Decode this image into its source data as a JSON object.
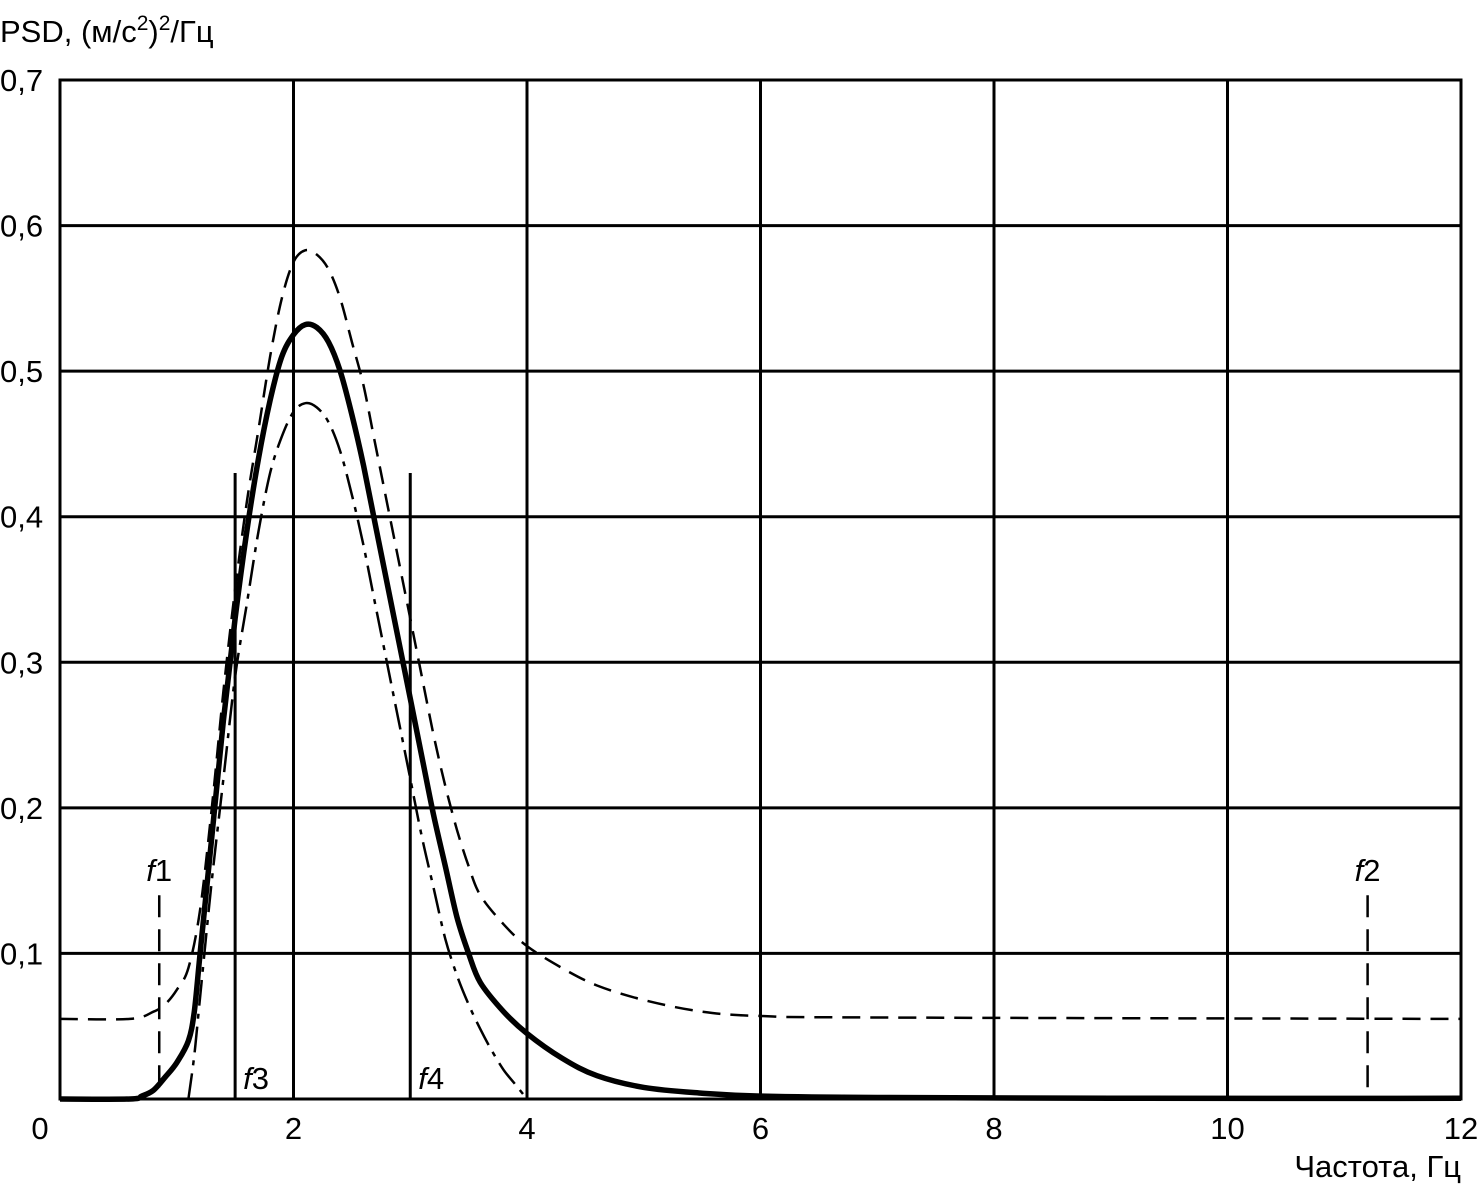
{
  "chart_data": {
    "type": "line",
    "ylabel_parts": [
      "PSD, (м/с",
      "2",
      ")",
      "2",
      "/Гц"
    ],
    "xlabel": "Частота, Гц",
    "xlim": [
      0,
      12
    ],
    "ylim": [
      0,
      0.7
    ],
    "grid": true,
    "x_ticks": [
      0,
      2,
      4,
      6,
      8,
      10,
      12
    ],
    "x_tick_labels": [
      "0",
      "2",
      "4",
      "6",
      "8",
      "10",
      "12"
    ],
    "y_ticks": [
      0.1,
      0.2,
      0.3,
      0.4,
      0.5,
      0.6,
      0.7
    ],
    "y_tick_labels": [
      "0,1",
      "0,2",
      "0,3",
      "0,4",
      "0,5",
      "0,6",
      "0,7"
    ],
    "series": [
      {
        "style": "solid",
        "values": [
          [
            0,
            0
          ],
          [
            0.6,
            0
          ],
          [
            0.7,
            0.002
          ],
          [
            0.8,
            0.006
          ],
          [
            0.9,
            0.015
          ],
          [
            1.0,
            0.025
          ],
          [
            1.1,
            0.04
          ],
          [
            1.15,
            0.06
          ],
          [
            1.2,
            0.1
          ],
          [
            1.3,
            0.18
          ],
          [
            1.4,
            0.26
          ],
          [
            1.5,
            0.33
          ],
          [
            1.6,
            0.39
          ],
          [
            1.7,
            0.44
          ],
          [
            1.8,
            0.48
          ],
          [
            1.9,
            0.51
          ],
          [
            2.0,
            0.525
          ],
          [
            2.1,
            0.532
          ],
          [
            2.2,
            0.53
          ],
          [
            2.3,
            0.52
          ],
          [
            2.4,
            0.5
          ],
          [
            2.5,
            0.47
          ],
          [
            2.6,
            0.435
          ],
          [
            2.7,
            0.395
          ],
          [
            2.8,
            0.355
          ],
          [
            2.9,
            0.315
          ],
          [
            3.0,
            0.275
          ],
          [
            3.1,
            0.235
          ],
          [
            3.2,
            0.195
          ],
          [
            3.3,
            0.16
          ],
          [
            3.4,
            0.125
          ],
          [
            3.5,
            0.1
          ],
          [
            3.6,
            0.08
          ],
          [
            3.8,
            0.06
          ],
          [
            4.0,
            0.045
          ],
          [
            4.3,
            0.028
          ],
          [
            4.6,
            0.016
          ],
          [
            5.0,
            0.008
          ],
          [
            5.5,
            0.004
          ],
          [
            6.0,
            0.002
          ],
          [
            7.0,
            0.001
          ],
          [
            9.0,
            0.0005
          ],
          [
            12.0,
            0.0005
          ]
        ]
      },
      {
        "style": "dashed",
        "values": [
          [
            0,
            0.055
          ],
          [
            0.6,
            0.055
          ],
          [
            0.8,
            0.06
          ],
          [
            0.9,
            0.065
          ],
          [
            1.0,
            0.075
          ],
          [
            1.1,
            0.09
          ],
          [
            1.2,
            0.13
          ],
          [
            1.3,
            0.2
          ],
          [
            1.4,
            0.28
          ],
          [
            1.5,
            0.35
          ],
          [
            1.6,
            0.41
          ],
          [
            1.7,
            0.46
          ],
          [
            1.8,
            0.51
          ],
          [
            1.9,
            0.55
          ],
          [
            2.0,
            0.575
          ],
          [
            2.1,
            0.583
          ],
          [
            2.2,
            0.58
          ],
          [
            2.3,
            0.57
          ],
          [
            2.4,
            0.55
          ],
          [
            2.5,
            0.52
          ],
          [
            2.6,
            0.49
          ],
          [
            2.7,
            0.45
          ],
          [
            2.8,
            0.41
          ],
          [
            2.9,
            0.37
          ],
          [
            3.0,
            0.33
          ],
          [
            3.1,
            0.29
          ],
          [
            3.2,
            0.25
          ],
          [
            3.3,
            0.215
          ],
          [
            3.4,
            0.185
          ],
          [
            3.5,
            0.16
          ],
          [
            3.6,
            0.14
          ],
          [
            3.8,
            0.12
          ],
          [
            4.0,
            0.105
          ],
          [
            4.3,
            0.09
          ],
          [
            4.6,
            0.078
          ],
          [
            5.0,
            0.068
          ],
          [
            5.5,
            0.06
          ],
          [
            6.0,
            0.057
          ],
          [
            7.0,
            0.056
          ],
          [
            12.0,
            0.055
          ]
        ]
      },
      {
        "style": "dash-dot",
        "values": [
          [
            1.1,
            0
          ],
          [
            1.15,
            0.03
          ],
          [
            1.2,
            0.07
          ],
          [
            1.3,
            0.15
          ],
          [
            1.4,
            0.22
          ],
          [
            1.5,
            0.29
          ],
          [
            1.6,
            0.34
          ],
          [
            1.7,
            0.39
          ],
          [
            1.8,
            0.43
          ],
          [
            1.9,
            0.455
          ],
          [
            2.0,
            0.472
          ],
          [
            2.1,
            0.478
          ],
          [
            2.2,
            0.475
          ],
          [
            2.3,
            0.465
          ],
          [
            2.4,
            0.445
          ],
          [
            2.5,
            0.415
          ],
          [
            2.6,
            0.38
          ],
          [
            2.7,
            0.34
          ],
          [
            2.8,
            0.3
          ],
          [
            2.9,
            0.26
          ],
          [
            3.0,
            0.22
          ],
          [
            3.1,
            0.18
          ],
          [
            3.2,
            0.145
          ],
          [
            3.3,
            0.11
          ],
          [
            3.4,
            0.085
          ],
          [
            3.5,
            0.065
          ],
          [
            3.6,
            0.048
          ],
          [
            3.7,
            0.033
          ],
          [
            3.8,
            0.02
          ],
          [
            3.9,
            0.01
          ],
          [
            4.0,
            0
          ]
        ]
      }
    ],
    "markers": [
      {
        "label_italic": "f",
        "label_num": "1",
        "x": 0.85,
        "y_top": 0.14,
        "style": "dashed"
      },
      {
        "label_italic": "f",
        "label_num": "2",
        "x": 11.2,
        "y_top": 0.14,
        "style": "dashed"
      },
      {
        "label_italic": "f",
        "label_num": "3",
        "x": 1.5,
        "y_top": 0.43,
        "style": "solid"
      },
      {
        "label_italic": "f",
        "label_num": "4",
        "x": 3.0,
        "y_top": 0.43,
        "style": "solid"
      }
    ]
  }
}
